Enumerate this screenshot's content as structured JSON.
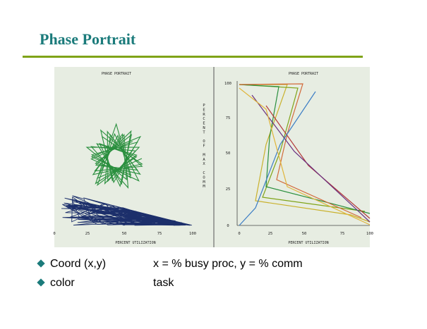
{
  "slide": {
    "title": "Phase Portrait",
    "colors": {
      "title": "#1b7b7b",
      "rule": "#7fa318",
      "bullet": "#1b7b7b",
      "photo_bg": "#e7ede2"
    }
  },
  "figure": {
    "left_panel": {
      "title": "PHASE PORTRAIT",
      "xlabel": "PERCENT UTILIZATION",
      "x_ticks": [
        "0",
        "25",
        "50",
        "75",
        "100"
      ]
    },
    "right_panel": {
      "title": "PHASE PORTRAIT",
      "xlabel": "PERCENT UTILIZATION",
      "x_ticks": [
        "0",
        "25",
        "50",
        "75",
        "100"
      ],
      "y_ticks": [
        "0",
        "25",
        "50",
        "75",
        "100"
      ],
      "ylabel_letters": [
        "P",
        "E",
        "R",
        "C",
        "E",
        "N",
        "T",
        "",
        "O",
        "F",
        "",
        "M",
        "A",
        "X",
        "",
        "C",
        "O",
        "M",
        "M"
      ]
    }
  },
  "bullets": [
    {
      "key": "Coord (x,y)",
      "value": "x = % busy proc, y = % comm"
    },
    {
      "key": "color",
      "value": "task"
    }
  ]
}
